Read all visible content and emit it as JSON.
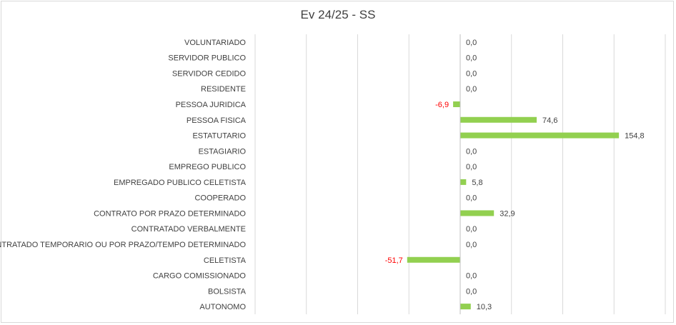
{
  "chart_data": {
    "type": "bar",
    "orientation": "horizontal",
    "title": "Ev 24/25 - SS",
    "categories": [
      "VOLUNTARIADO",
      "SERVIDOR PUBLICO",
      "SERVIDOR CEDIDO",
      "RESIDENTE",
      "PESSOA JURIDICA",
      "PESSOA FISICA",
      "ESTATUTARIO",
      "ESTAGIARIO",
      "EMPREGO PUBLICO",
      "EMPREGADO PUBLICO CELETISTA",
      "COOPERADO",
      "CONTRATO POR PRAZO DETERMINADO",
      "CONTRATADO VERBALMENTE",
      "CONTRATADO TEMPORARIO OU POR PRAZO/TEMPO DETERMINADO",
      "CELETISTA",
      "CARGO COMISSIONADO",
      "BOLSISTA",
      "AUTONOMO"
    ],
    "values": [
      0,
      0,
      0,
      0,
      -6.9,
      74.6,
      154.8,
      0,
      0,
      5.8,
      0,
      32.9,
      0,
      0,
      -51.7,
      0,
      0,
      10.3
    ],
    "data_labels": [
      "0,0",
      "0,0",
      "0,0",
      "0,0",
      "-6,9",
      "74,6",
      "154,8",
      "0,0",
      "0,0",
      "5,8",
      "0,0",
      "32,9",
      "0,0",
      "0,0",
      "-51,7",
      "0,0",
      "0,0",
      "10,3"
    ],
    "xlim": [
      -200,
      200
    ],
    "grid": true,
    "legend": "none",
    "colors": {
      "bar": "#92d050",
      "positive_label": "#404040",
      "negative_label": "#ff0000",
      "category_label": "#404040",
      "gridline": "#d9d9d9",
      "axis": "#bfbfbf"
    }
  }
}
